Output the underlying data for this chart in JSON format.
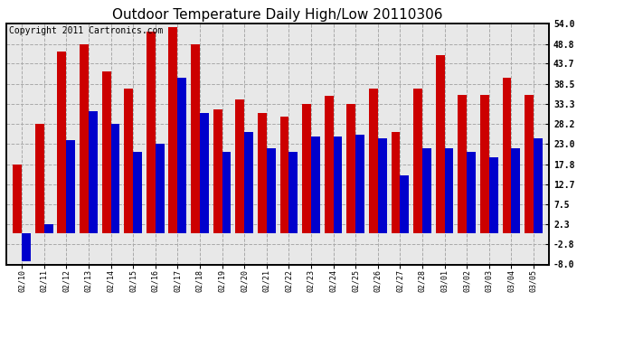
{
  "title": "Outdoor Temperature Daily High/Low 20110306",
  "copyright": "Copyright 2011 Cartronics.com",
  "dates": [
    "02/10",
    "02/11",
    "02/12",
    "02/13",
    "02/14",
    "02/15",
    "02/16",
    "02/17",
    "02/18",
    "02/19",
    "02/20",
    "02/21",
    "02/22",
    "02/23",
    "02/24",
    "02/25",
    "02/26",
    "02/27",
    "02/28",
    "03/01",
    "03/02",
    "03/03",
    "03/04",
    "03/05"
  ],
  "highs": [
    17.8,
    28.2,
    46.9,
    48.8,
    41.8,
    37.4,
    52.0,
    53.1,
    48.8,
    32.0,
    34.5,
    30.9,
    30.0,
    33.3,
    35.5,
    33.3,
    37.4,
    26.0,
    37.4,
    46.0,
    35.6,
    35.6,
    40.1,
    35.6
  ],
  "lows": [
    -7.2,
    2.3,
    24.0,
    31.5,
    28.2,
    21.0,
    23.0,
    40.1,
    30.9,
    21.0,
    26.0,
    22.0,
    21.0,
    25.0,
    25.0,
    25.5,
    24.5,
    15.0,
    22.0,
    22.0,
    21.0,
    19.5,
    22.0,
    24.5
  ],
  "high_color": "#cc0000",
  "low_color": "#0000cc",
  "background_color": "#ffffff",
  "plot_bg_color": "#e8e8e8",
  "grid_color": "#aaaaaa",
  "ylim": [
    -8.0,
    54.0
  ],
  "yticks": [
    54.0,
    48.8,
    43.7,
    38.5,
    33.3,
    28.2,
    23.0,
    17.8,
    12.7,
    7.5,
    2.3,
    -2.8,
    -8.0
  ],
  "bar_width": 0.4,
  "title_fontsize": 11,
  "copyright_fontsize": 7
}
